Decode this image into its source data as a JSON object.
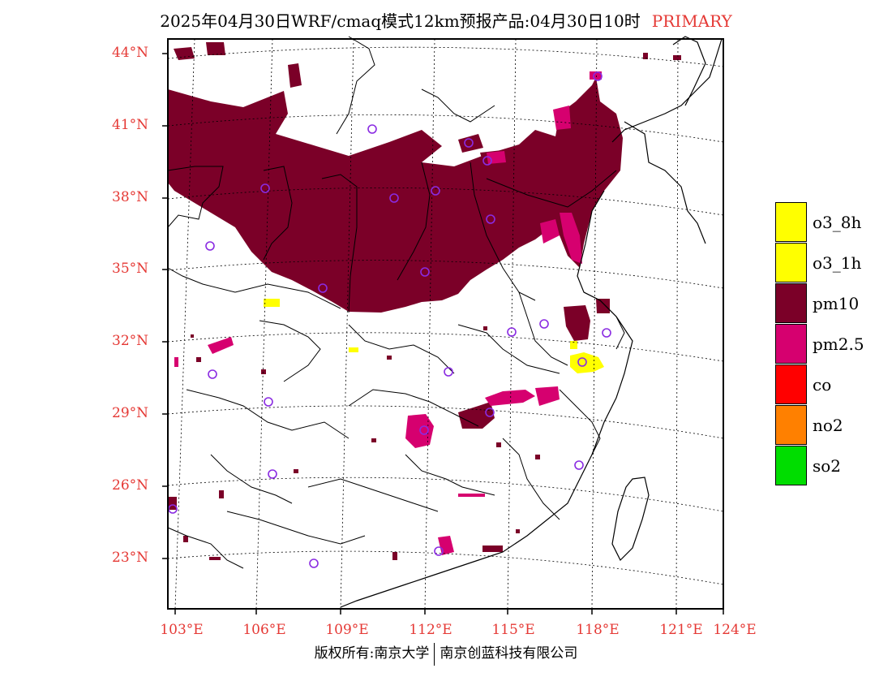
{
  "title": {
    "main": "2025年04月30日WRF/cmaq模式12km预报产品:04月30日10时",
    "tag": "PRIMARY"
  },
  "axes": {
    "latitudes": [
      "44°N",
      "41°N",
      "38°N",
      "35°N",
      "32°N",
      "29°N",
      "26°N",
      "23°N"
    ],
    "longitudes": [
      "103°E",
      "106°E",
      "109°E",
      "112°E",
      "115°E",
      "118°E",
      "121°E",
      "124°E"
    ]
  },
  "legend": [
    {
      "label": "o3_8h",
      "color": "#ffff00"
    },
    {
      "label": "o3_1h",
      "color": "#ffff00"
    },
    {
      "label": "pm10",
      "color": "#7b0028"
    },
    {
      "label": "pm2.5",
      "color": "#d6006f"
    },
    {
      "label": "co",
      "color": "#ff0000"
    },
    {
      "label": "no2",
      "color": "#ff8000"
    },
    {
      "label": "so2",
      "color": "#00dd00"
    }
  ],
  "colors": {
    "pm10": "#7b0028",
    "pm25": "#d6006f",
    "o3": "#ffff00",
    "station_marker": "#8a2be2",
    "axis_label": "#e53935"
  },
  "footer": {
    "left": "版权所有:南京大学",
    "right": "南京创蓝科技有限公司"
  }
}
